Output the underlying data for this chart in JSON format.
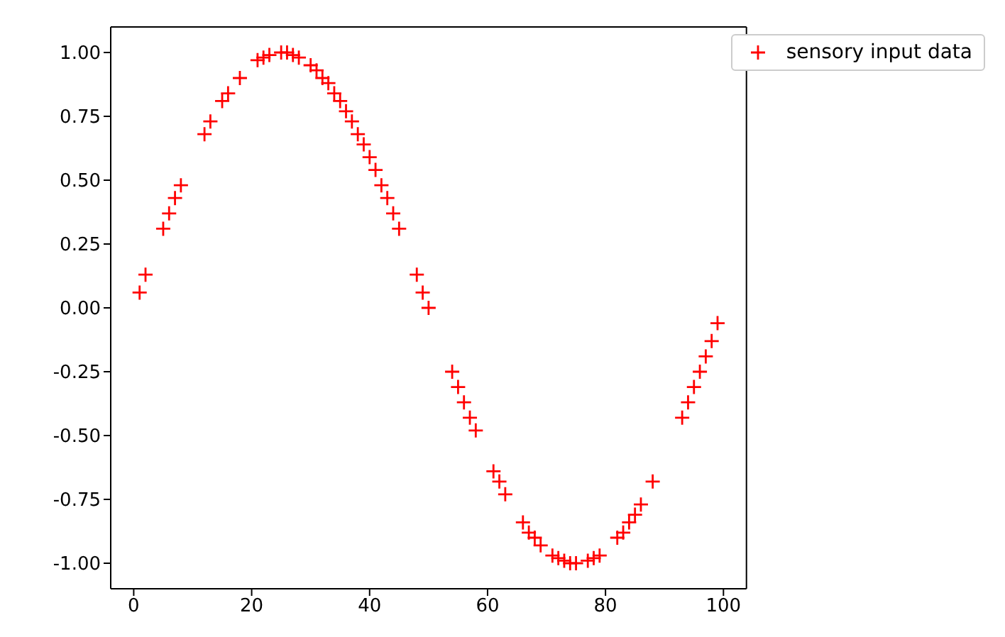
{
  "chart_data": {
    "type": "scatter",
    "marker": "cross",
    "legend": "top right",
    "grid": false,
    "xlim": [
      -3.9,
      103.9
    ],
    "xticks": [
      0,
      20,
      40,
      60,
      80,
      100
    ],
    "ylim": [
      -1.1,
      1.1
    ],
    "yticks": [
      {
        "value": -1,
        "label": "-1.00"
      },
      {
        "value": -0.75,
        "label": "-0.75"
      },
      {
        "value": -0.5,
        "label": "-0.50"
      },
      {
        "value": -0.25,
        "label": "-0.25"
      },
      {
        "value": 0,
        "label": "0.00"
      },
      {
        "value": 0.25,
        "label": "0.25"
      },
      {
        "value": 0.5,
        "label": "0.50"
      },
      {
        "value": 0.75,
        "label": "0.75"
      },
      {
        "value": 1,
        "label": "1.00"
      }
    ],
    "series": [
      {
        "name": "sensory input data",
        "color": "#ff0000",
        "x": [
          1,
          2,
          5,
          6,
          7,
          8,
          12,
          13,
          15,
          16,
          18,
          21,
          22,
          23,
          25,
          26,
          27,
          28,
          30,
          31,
          32,
          33,
          34,
          35,
          36,
          37,
          38,
          39,
          40,
          41,
          42,
          43,
          44,
          45,
          48,
          49,
          50,
          54,
          55,
          56,
          57,
          58,
          61,
          62,
          63,
          66,
          67,
          68,
          69,
          71,
          72,
          73,
          74,
          75,
          77,
          78,
          79,
          82,
          83,
          84,
          85,
          86,
          88,
          93,
          94,
          95,
          96,
          97,
          98,
          99
        ],
        "values": [
          0.06,
          0.13,
          0.31,
          0.37,
          0.43,
          0.48,
          0.68,
          0.73,
          0.81,
          0.84,
          0.9,
          0.97,
          0.98,
          0.99,
          1.0,
          1.0,
          0.99,
          0.98,
          0.95,
          0.93,
          0.9,
          0.88,
          0.84,
          0.81,
          0.77,
          0.73,
          0.68,
          0.64,
          0.59,
          0.54,
          0.48,
          0.43,
          0.37,
          0.31,
          0.13,
          0.06,
          0.0,
          -0.25,
          -0.31,
          -0.37,
          -0.43,
          -0.48,
          -0.64,
          -0.68,
          -0.73,
          -0.84,
          -0.88,
          -0.9,
          -0.93,
          -0.97,
          -0.98,
          -0.99,
          -1.0,
          -1.0,
          -0.99,
          -0.98,
          -0.97,
          -0.9,
          -0.88,
          -0.84,
          -0.81,
          -0.77,
          -0.68,
          -0.43,
          -0.37,
          -0.31,
          -0.25,
          -0.19,
          -0.13,
          -0.06
        ]
      }
    ]
  }
}
